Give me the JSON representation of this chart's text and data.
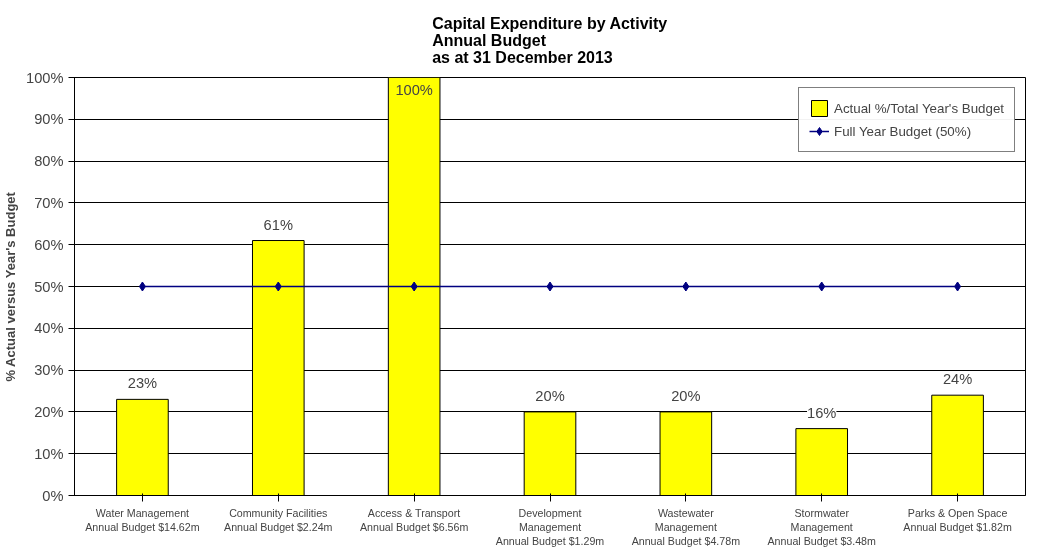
{
  "chart_data": {
    "type": "bar",
    "title": "Capital Expenditure by Activity\nAnnual Budget\nas at 31 December 2013",
    "ylabel": "% Actual versus Year's Budget",
    "categories": [
      "Water Management\nAnnual Budget $14.62m",
      "Community Facilities\nAnnual Budget $2.24m",
      "Access & Transport\nAnnual Budget $6.56m",
      "Development\nManagement\nAnnual Budget $1.29m",
      "Wastewater\nManagement\nAnnual Budget $4.78m",
      "Stormwater\nManagement\nAnnual Budget $3.48m",
      "Parks & Open Space\nAnnual Budget $1.82m"
    ],
    "series": [
      {
        "name": "Actual %/Total Year's Budget",
        "type": "bar",
        "color": "#ffff00",
        "values": [
          23,
          61,
          100,
          20,
          20,
          16,
          24
        ],
        "value_labels": [
          "23%",
          "61%",
          "100%",
          "20%",
          "20%",
          "16%",
          "24%"
        ]
      },
      {
        "name": "Full Year Budget (50%)",
        "type": "line",
        "color": "#000080",
        "values": [
          50,
          50,
          50,
          50,
          50,
          50,
          50
        ],
        "marker": "diamond"
      }
    ],
    "ylim": [
      0,
      100
    ],
    "yticks": [
      {
        "value": 0,
        "label": "0%"
      },
      {
        "value": 10,
        "label": "10%"
      },
      {
        "value": 20,
        "label": "20%"
      },
      {
        "value": 30,
        "label": "30%"
      },
      {
        "value": 40,
        "label": "40%"
      },
      {
        "value": 50,
        "label": "50%"
      },
      {
        "value": 60,
        "label": "60%"
      },
      {
        "value": 70,
        "label": "70%"
      },
      {
        "value": 80,
        "label": "80%"
      },
      {
        "value": 90,
        "label": "90%"
      },
      {
        "value": 100,
        "label": "100%"
      }
    ],
    "grid": "y",
    "legend": "top right"
  }
}
